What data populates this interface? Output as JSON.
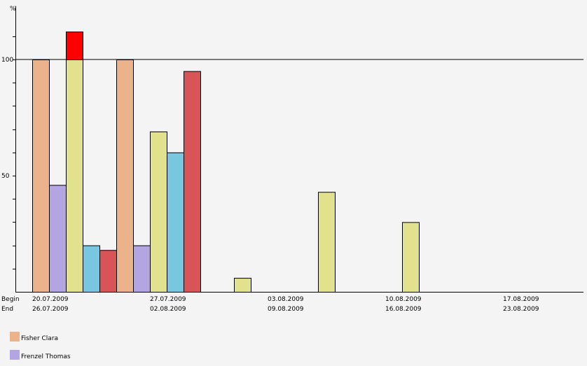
{
  "chart_data": {
    "type": "bar",
    "ylabel": "%",
    "ylim": [
      0,
      123
    ],
    "y_ticks": [
      0,
      10,
      20,
      30,
      40,
      50,
      60,
      70,
      80,
      90,
      100,
      110
    ],
    "y_tick_labels": [
      {
        "value": 50,
        "label": "50"
      },
      {
        "value": 100,
        "label": "100"
      }
    ],
    "reference_line": 100,
    "row_labels": {
      "begin": "Begin",
      "end": "End"
    },
    "periods": [
      {
        "begin": "20.07.2009",
        "end": "26.07.2009"
      },
      {
        "begin": "27.07.2009",
        "end": "02.08.2009"
      },
      {
        "begin": "03.08.2009",
        "end": "09.08.2009"
      },
      {
        "begin": "10.08.2009",
        "end": "16.08.2009"
      },
      {
        "begin": "17.08.2009",
        "end": "23.08.2009"
      }
    ],
    "series": [
      {
        "name": "Fisher Clara",
        "color": "#ebb28c",
        "in_legend": true,
        "values": [
          100,
          100,
          0,
          0,
          0
        ]
      },
      {
        "name": "Frenzel Thomas",
        "color": "#b3a5e2",
        "in_legend": true,
        "values": [
          46,
          20,
          0,
          0,
          0
        ]
      },
      {
        "name": "",
        "color": "#e2e18e",
        "in_legend": false,
        "values": [
          100,
          69,
          6,
          43,
          30
        ]
      },
      {
        "name": "",
        "color": "#78c6e0",
        "in_legend": false,
        "values": [
          20,
          60,
          0,
          0,
          0
        ]
      },
      {
        "name": "",
        "color": "#d95457",
        "in_legend": false,
        "values": [
          18,
          95,
          0,
          0,
          0
        ]
      }
    ],
    "overload": {
      "series_index": 2,
      "period_index": 0,
      "value": 112,
      "color": "#ff0000"
    },
    "grid": false,
    "legend_position": "bottom-left"
  }
}
